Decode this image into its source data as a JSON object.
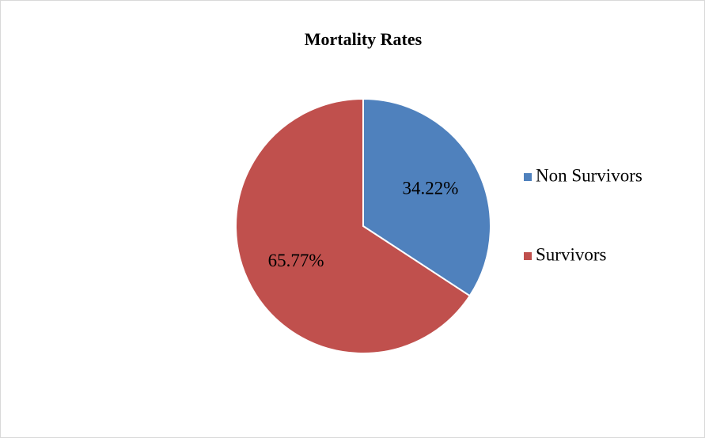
{
  "chart_data": {
    "type": "pie",
    "title": "Mortality Rates",
    "categories": [
      "Non Survivors",
      "Survivors"
    ],
    "values": [
      34.22,
      65.77
    ],
    "value_labels": [
      "34.22%",
      "65.77%"
    ],
    "colors": [
      "#4f81bd",
      "#c0504d"
    ],
    "legend": "right"
  }
}
